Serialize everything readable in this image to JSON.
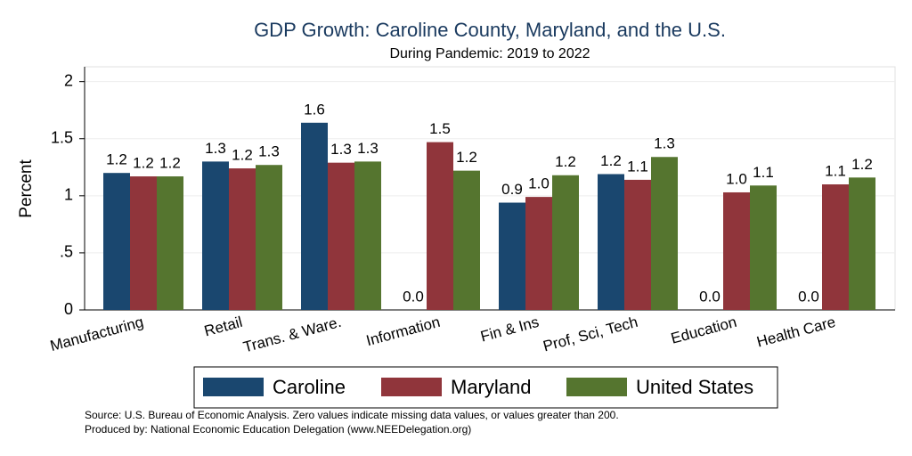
{
  "chart_data": {
    "type": "bar",
    "title": "GDP Growth: Caroline County, Maryland, and the U.S.",
    "subtitle": "During Pandemic: 2019 to 2022",
    "y_label": "Percent",
    "categories": [
      "Manufacturing",
      "Retail",
      "Trans. & Ware.",
      "Information",
      "Fin & Ins",
      "Prof, Sci, Tech",
      "Education",
      "Health Care"
    ],
    "series": [
      {
        "name": "Caroline",
        "color": "#1a476f",
        "values": [
          1.2,
          1.3,
          1.64,
          0,
          0.94,
          1.19,
          0,
          0
        ],
        "value_labels": [
          "1.2",
          "1.3",
          "1.6",
          "0.0",
          "0.9",
          "1.2",
          "0.0",
          "0.0"
        ]
      },
      {
        "name": "Maryland",
        "color": "#90353b",
        "values": [
          1.17,
          1.24,
          1.29,
          1.47,
          0.99,
          1.14,
          1.03,
          1.1
        ],
        "value_labels": [
          "1.2",
          "1.2",
          "1.3",
          "1.5",
          "1.0",
          "1.1",
          "1.0",
          "1.1"
        ]
      },
      {
        "name": "United States",
        "color": "#55752f",
        "values": [
          1.17,
          1.27,
          1.3,
          1.22,
          1.18,
          1.34,
          1.09,
          1.16
        ],
        "value_labels": [
          "1.2",
          "1.3",
          "1.3",
          "1.2",
          "1.2",
          "1.3",
          "1.1",
          "1.2"
        ]
      }
    ],
    "ylim": [
      0,
      2.13
    ],
    "yticks": [
      0,
      {
        "value": 0.5,
        "label": ".5"
      },
      1,
      1.5,
      2
    ],
    "grid": true,
    "legend": "bottom",
    "notes": [
      "Source: U.S. Bureau of Economic Analysis. Zero values indicate missing data values, or values greater than 200.",
      "Produced by: National Economic Education Delegation (www.NEEDelegation.org)"
    ]
  }
}
